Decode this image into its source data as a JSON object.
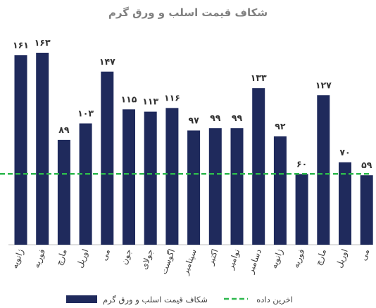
{
  "chart_data": {
    "type": "bar",
    "title": "شکاف قیمت اسلب و ورق گرم",
    "categories": [
      "ژانویه",
      "فوریه",
      "مارچ",
      "اوریل",
      "می",
      "جون",
      "جولای",
      "اگوست",
      "سپتامبر",
      "اکتبر",
      "نوامبر",
      "دسامبر",
      "ژانویه",
      "فوریه",
      "مارچ",
      "اوریل",
      "می"
    ],
    "series": [
      {
        "name": "شکاف قیمت اسلب و ورق گرم",
        "values": [
          161,
          163,
          89,
          103,
          147,
          115,
          113,
          116,
          97,
          99,
          99,
          133,
          92,
          60,
          127,
          70,
          59
        ],
        "value_labels": [
          "۱۶۱",
          "۱۶۳",
          "۸۹",
          "۱۰۳",
          "۱۴۷",
          "۱۱۵",
          "۱۱۳",
          "۱۱۶",
          "۹۷",
          "۹۹",
          "۹۹",
          "۱۳۳",
          "۹۲",
          "۶۰",
          "۱۲۷",
          "۷۰",
          "۵۹"
        ]
      }
    ],
    "reference_line": {
      "name": "اخرین داده",
      "value": 59
    },
    "ylim": [
      0,
      170
    ],
    "grid": false,
    "legend_position": "bottom",
    "colors": {
      "bar": "#1f2a5c",
      "reference_line": "#2db84d"
    }
  }
}
